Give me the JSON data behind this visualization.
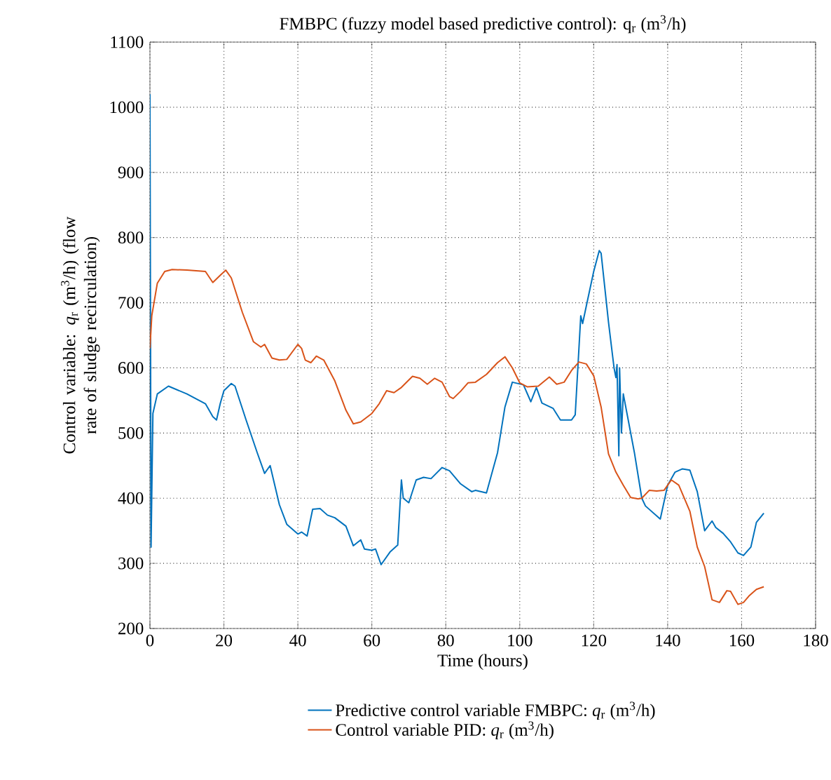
{
  "chart_data": {
    "type": "line",
    "title": "FMBPC (fuzzy model based predictive control): q$_{r}$ (m$^{3}$/h)",
    "xlabel": "Time (hours)",
    "ylabel": "Control variable: *q*$_{r}$ (m$^{3}$/h) (flow rate of sludge recirculation)",
    "xlim": [
      0,
      180
    ],
    "ylim": [
      200,
      1100
    ],
    "xticks": [
      0,
      20,
      40,
      60,
      80,
      100,
      120,
      140,
      160,
      180
    ],
    "yticks": [
      200,
      300,
      400,
      500,
      600,
      700,
      800,
      900,
      1000,
      1100
    ],
    "grid": true,
    "legend": "bottom",
    "marker": "none",
    "line_style": "solid",
    "series": [
      {
        "name": "Predictive control variable FMBPC: *q*$_{r}$ (m$^{3}$/h)",
        "color": "#0072bd",
        "x": [
          0,
          0.3,
          0.8,
          2,
          5,
          10,
          15,
          17,
          18,
          19,
          20,
          22,
          23,
          26,
          29,
          31,
          32.5,
          35,
          37,
          40,
          41,
          42.5,
          44,
          46,
          48,
          50,
          53,
          55,
          57,
          58,
          60,
          61,
          62.5,
          65,
          67,
          68,
          68.5,
          70,
          72,
          74,
          76,
          79,
          81,
          84,
          87,
          88,
          91,
          94,
          96,
          98,
          101,
          103,
          104.5,
          106,
          109,
          111,
          114,
          115,
          116.5,
          117,
          118,
          120,
          121.5,
          122,
          124,
          125.5,
          126,
          126.3,
          126.6,
          126.8,
          127,
          127.5,
          128,
          129,
          131,
          133,
          134,
          138,
          140,
          142,
          144,
          146,
          148,
          150,
          152,
          153,
          155,
          157,
          159,
          160.5,
          162.5,
          164,
          166
        ],
        "values": [
          1020,
          325,
          530,
          560,
          572,
          560,
          545,
          525,
          520,
          545,
          565,
          576,
          572,
          520,
          470,
          438,
          450,
          390,
          360,
          345,
          348,
          342,
          383,
          384,
          374,
          370,
          357,
          327,
          336,
          322,
          320,
          322,
          298,
          318,
          328,
          428,
          400,
          393,
          428,
          432,
          430,
          447,
          442,
          422,
          410,
          412,
          408,
          470,
          540,
          578,
          574,
          548,
          570,
          546,
          538,
          520,
          520,
          528,
          680,
          668,
          695,
          748,
          780,
          776,
          670,
          600,
          585,
          605,
          520,
          465,
          600,
          500,
          560,
          530,
          470,
          400,
          388,
          368,
          420,
          440,
          445,
          443,
          410,
          350,
          365,
          355,
          346,
          333,
          316,
          312,
          325,
          363,
          377
        ]
      },
      {
        "name": "Control variable PID: *q*$_{r}$ (m$^{3}$/h)",
        "color": "#d95319",
        "x": [
          0,
          0.5,
          2,
          4,
          6,
          10,
          15,
          17,
          19,
          20.5,
          22,
          25,
          28,
          30,
          31,
          33,
          35,
          37,
          40,
          41,
          42,
          43.5,
          45,
          47,
          50,
          53,
          55,
          57,
          60,
          62,
          64,
          66,
          68,
          71,
          73,
          75,
          77,
          79,
          81,
          82,
          84,
          86,
          88,
          91,
          94,
          96,
          98,
          100,
          102,
          105,
          108,
          110,
          112,
          114,
          116,
          118,
          120,
          122,
          124,
          126,
          128,
          130,
          132,
          133,
          135,
          137,
          139,
          141,
          143,
          146,
          148,
          150,
          152,
          154,
          156,
          157,
          159,
          160.5,
          162,
          164,
          166
        ],
        "values": [
          630,
          680,
          730,
          748,
          751,
          750,
          748,
          731,
          742,
          750,
          738,
          685,
          640,
          632,
          636,
          615,
          612,
          613,
          636,
          630,
          612,
          608,
          618,
          612,
          580,
          535,
          514,
          517,
          530,
          545,
          565,
          562,
          570,
          587,
          584,
          575,
          584,
          578,
          556,
          553,
          564,
          577,
          578,
          590,
          608,
          617,
          600,
          577,
          571,
          572,
          586,
          575,
          578,
          596,
          609,
          606,
          588,
          540,
          468,
          440,
          420,
          401,
          399,
          400,
          412,
          411,
          412,
          428,
          420,
          380,
          325,
          295,
          244,
          240,
          258,
          257,
          237,
          240,
          250,
          260,
          264
        ]
      }
    ]
  }
}
